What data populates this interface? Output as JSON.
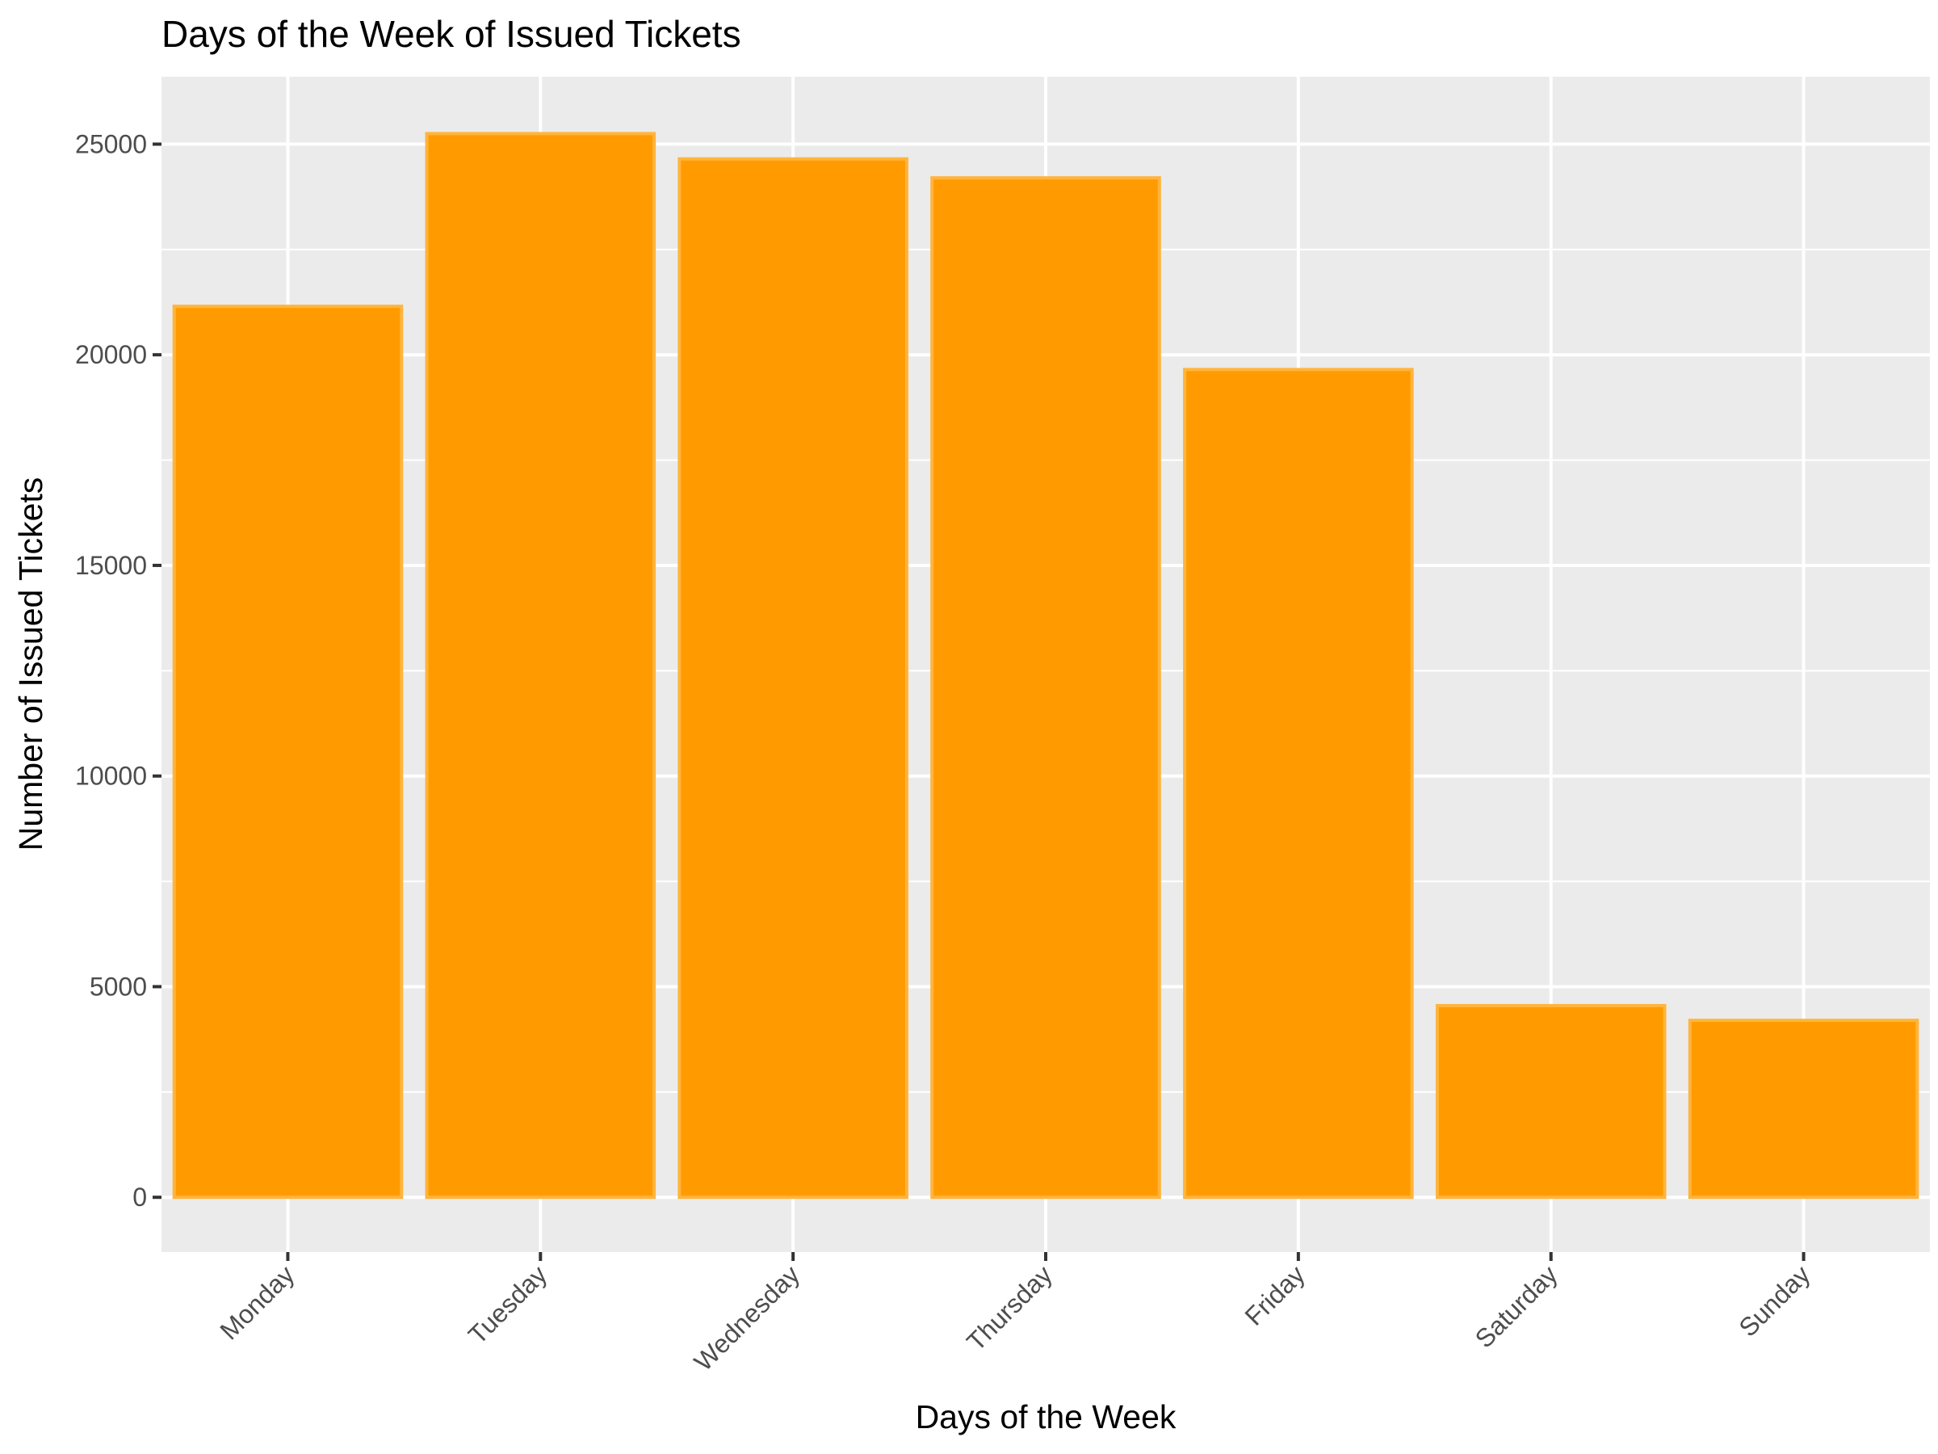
{
  "chart_data": {
    "type": "bar",
    "title": "Days of the Week of Issued Tickets",
    "xlabel": "Days of the Week",
    "ylabel": "Number of Issued Tickets",
    "categories": [
      "Monday",
      "Tuesday",
      "Wednesday",
      "Thursday",
      "Friday",
      "Saturday",
      "Sunday"
    ],
    "values": [
      21150,
      25250,
      24650,
      24200,
      19650,
      4550,
      4200
    ],
    "ylim": [
      -1300,
      26600
    ],
    "yticks": [
      0,
      5000,
      10000,
      15000,
      20000,
      25000
    ],
    "ytick_labels": [
      "0",
      "5000",
      "10000",
      "15000",
      "20000",
      "25000"
    ],
    "grid": true,
    "colors": {
      "bar_fill": "#ff9b00",
      "bar_outline": "#ffb43c",
      "panel_background": "#ebebeb",
      "gridline": "#ffffff"
    }
  }
}
